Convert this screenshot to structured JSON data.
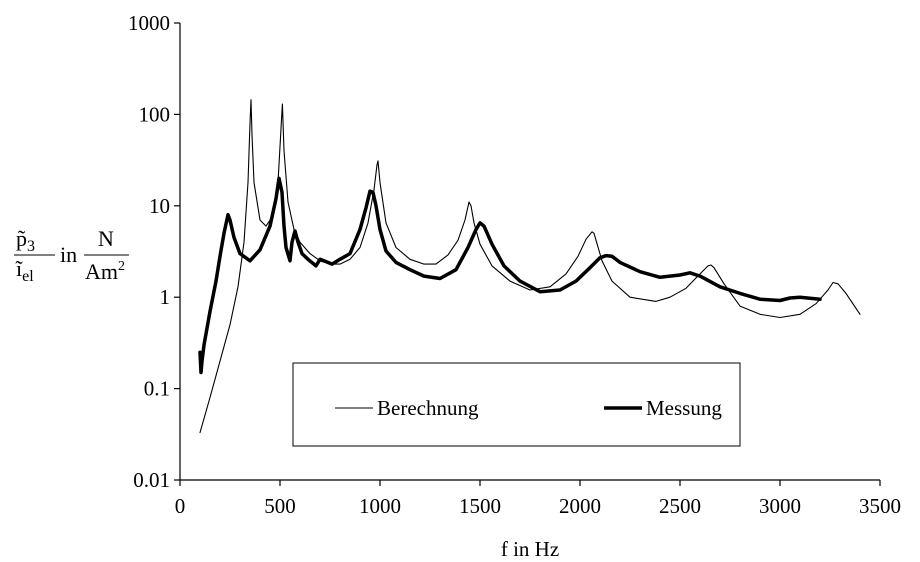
{
  "chart_data": {
    "type": "line",
    "title": "",
    "xlabel": "f in Hz",
    "ylabel": {
      "numerator": "p̃",
      "numerator_sub": "3",
      "denominator": "ĩ",
      "denominator_sub": "el",
      "in": "in",
      "unit_numerator": "N",
      "unit_denominator": "Am",
      "unit_denominator_sup": "2"
    },
    "xlim": [
      0,
      3500
    ],
    "ylim": [
      0.01,
      1000
    ],
    "yscale": "log",
    "xticks": [
      0,
      500,
      1000,
      1500,
      2000,
      2500,
      3000,
      3500
    ],
    "xtick_labels": [
      "0",
      "500",
      "1000",
      "1500",
      "2000",
      "2500",
      "3000",
      "3500"
    ],
    "yticks": [
      0.01,
      0.1,
      1,
      10,
      100,
      1000
    ],
    "ytick_labels": [
      "0.01",
      "0.1",
      "1",
      "10",
      "100",
      "1000"
    ],
    "grid": false,
    "legend": "bottom-center, boxed",
    "series": [
      {
        "name": "Berechnung",
        "style": "thin",
        "color": "#000000",
        "x": [
          100,
          150,
          200,
          250,
          290,
          320,
          340,
          350,
          355,
          360,
          370,
          400,
          430,
          460,
          490,
          505,
          512,
          520,
          540,
          570,
          600,
          650,
          700,
          750,
          800,
          850,
          900,
          940,
          970,
          985,
          990,
          1000,
          1030,
          1080,
          1150,
          1220,
          1280,
          1340,
          1390,
          1425,
          1445,
          1455,
          1470,
          1500,
          1560,
          1650,
          1750,
          1850,
          1930,
          1990,
          2030,
          2060,
          2070,
          2080,
          2110,
          2160,
          2250,
          2380,
          2450,
          2530,
          2600,
          2640,
          2655,
          2670,
          2720,
          2800,
          2900,
          3000,
          3100,
          3180,
          3240,
          3265,
          3290,
          3330,
          3400
        ],
        "y": [
          0.033,
          0.08,
          0.2,
          0.5,
          1.3,
          4.0,
          18,
          80,
          145,
          60,
          18,
          7.0,
          6.0,
          7.5,
          18,
          70,
          130,
          40,
          11,
          5.5,
          4.0,
          3.0,
          2.5,
          2.3,
          2.3,
          2.6,
          3.5,
          6.5,
          15,
          28,
          31,
          18,
          6.5,
          3.5,
          2.6,
          2.3,
          2.3,
          2.9,
          4.2,
          7.0,
          11,
          10,
          6.5,
          3.8,
          2.2,
          1.5,
          1.2,
          1.3,
          1.8,
          2.8,
          4.3,
          5.2,
          5.0,
          4.2,
          2.5,
          1.5,
          1.0,
          0.9,
          1.0,
          1.25,
          1.8,
          2.2,
          2.25,
          2.1,
          1.4,
          0.8,
          0.65,
          0.6,
          0.65,
          0.85,
          1.2,
          1.45,
          1.4,
          1.1,
          0.65
        ]
      },
      {
        "name": "Messung",
        "style": "thick",
        "color": "#000000",
        "x": [
          100,
          105,
          110,
          120,
          150,
          180,
          200,
          220,
          240,
          250,
          270,
          300,
          350,
          400,
          450,
          480,
          495,
          510,
          520,
          530,
          550,
          560,
          575,
          590,
          610,
          640,
          680,
          700,
          720,
          760,
          800,
          850,
          900,
          930,
          950,
          965,
          980,
          1000,
          1030,
          1080,
          1150,
          1220,
          1300,
          1380,
          1440,
          1480,
          1500,
          1520,
          1560,
          1620,
          1700,
          1800,
          1900,
          1980,
          2050,
          2100,
          2130,
          2160,
          2200,
          2300,
          2400,
          2500,
          2550,
          2600,
          2700,
          2800,
          2900,
          3000,
          3050,
          3100,
          3200
        ],
        "y": [
          0.25,
          0.15,
          0.2,
          0.3,
          0.7,
          1.5,
          2.8,
          5.0,
          8.0,
          7.0,
          4.5,
          3.0,
          2.5,
          3.3,
          6.0,
          12,
          20,
          14,
          6.0,
          3.5,
          2.5,
          4.0,
          5.3,
          4.0,
          3.0,
          2.6,
          2.2,
          2.6,
          2.5,
          2.3,
          2.6,
          3.0,
          5.5,
          9.5,
          14.5,
          14,
          10,
          5.5,
          3.2,
          2.4,
          2.0,
          1.7,
          1.6,
          2.0,
          3.5,
          5.5,
          6.5,
          6.0,
          3.8,
          2.2,
          1.5,
          1.15,
          1.2,
          1.5,
          2.1,
          2.7,
          2.85,
          2.8,
          2.4,
          1.9,
          1.65,
          1.75,
          1.85,
          1.7,
          1.3,
          1.1,
          0.95,
          0.92,
          0.98,
          1.0,
          0.95
        ]
      }
    ]
  }
}
